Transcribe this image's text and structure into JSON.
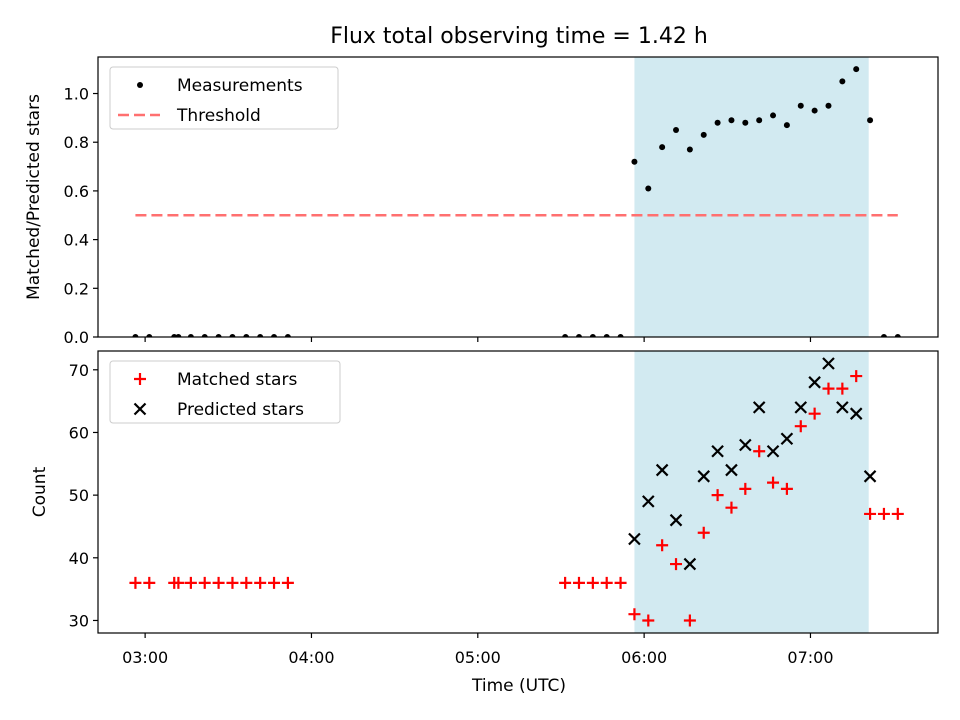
{
  "chart_data": [
    {
      "type": "scatter",
      "panel": "top",
      "title": "Flux total observing time = 1.42 h",
      "xlabel": "",
      "ylabel": "Matched/Predicted stars",
      "xlim": [
        2.7167,
        7.7667
      ],
      "ylim": [
        0.0,
        1.15
      ],
      "yticks": [
        0.0,
        0.2,
        0.4,
        0.6,
        0.8,
        1.0
      ],
      "ytick_labels": [
        "0.0",
        "0.2",
        "0.4",
        "0.6",
        "0.8",
        "1.0"
      ],
      "xticks": [
        3,
        4,
        5,
        6,
        7
      ],
      "shaded_span": [
        5.9417,
        7.35
      ],
      "legend": [
        "Measurements",
        "Threshold"
      ],
      "legend_position": "upper left",
      "series": [
        {
          "name": "Measurements",
          "marker": "dot",
          "color": "#000000",
          "points": [
            [
              2.9417,
              0.0
            ],
            [
              3.025,
              0.0
            ],
            [
              3.175,
              0.0
            ],
            [
              3.2,
              0.0
            ],
            [
              3.275,
              0.0
            ],
            [
              3.3583,
              0.0
            ],
            [
              3.4417,
              0.0
            ],
            [
              3.525,
              0.0
            ],
            [
              3.6083,
              0.0
            ],
            [
              3.6917,
              0.0
            ],
            [
              3.775,
              0.0
            ],
            [
              3.8583,
              0.0
            ],
            [
              5.525,
              0.0
            ],
            [
              5.6083,
              0.0
            ],
            [
              5.6917,
              0.0
            ],
            [
              5.775,
              0.0
            ],
            [
              5.8583,
              0.0
            ],
            [
              5.9417,
              0.72
            ],
            [
              6.025,
              0.61
            ],
            [
              6.1083,
              0.78
            ],
            [
              6.1917,
              0.85
            ],
            [
              6.275,
              0.77
            ],
            [
              6.3583,
              0.83
            ],
            [
              6.4417,
              0.88
            ],
            [
              6.525,
              0.89
            ],
            [
              6.6083,
              0.88
            ],
            [
              6.6917,
              0.89
            ],
            [
              6.775,
              0.91
            ],
            [
              6.8583,
              0.87
            ],
            [
              6.9417,
              0.95
            ],
            [
              7.025,
              0.93
            ],
            [
              7.1083,
              0.95
            ],
            [
              7.1917,
              1.05
            ],
            [
              7.275,
              1.1
            ],
            [
              7.3583,
              0.89
            ],
            [
              7.4417,
              0.0
            ],
            [
              7.525,
              0.0
            ]
          ]
        },
        {
          "name": "Threshold",
          "style": "dashed",
          "color": "#ff7070",
          "x": [
            2.9417,
            7.525
          ],
          "y": [
            0.5,
            0.5
          ]
        }
      ]
    },
    {
      "type": "scatter",
      "panel": "bottom",
      "title": "",
      "xlabel": "Time (UTC)",
      "ylabel": "Count",
      "xlim": [
        2.7167,
        7.7667
      ],
      "ylim": [
        28,
        73
      ],
      "yticks": [
        30,
        40,
        50,
        60,
        70
      ],
      "ytick_labels": [
        "30",
        "40",
        "50",
        "60",
        "70"
      ],
      "xticks": [
        3,
        4,
        5,
        6,
        7
      ],
      "xtick_labels": [
        "03:00",
        "04:00",
        "05:00",
        "06:00",
        "07:00"
      ],
      "shaded_span": [
        5.9417,
        7.35
      ],
      "legend": [
        "Matched stars",
        "Predicted stars"
      ],
      "legend_position": "upper left",
      "series": [
        {
          "name": "Matched stars",
          "marker": "plus",
          "color": "#ff0000",
          "points": [
            [
              2.9417,
              36
            ],
            [
              3.025,
              36
            ],
            [
              3.175,
              36
            ],
            [
              3.2,
              36
            ],
            [
              3.275,
              36
            ],
            [
              3.3583,
              36
            ],
            [
              3.4417,
              36
            ],
            [
              3.525,
              36
            ],
            [
              3.6083,
              36
            ],
            [
              3.6917,
              36
            ],
            [
              3.775,
              36
            ],
            [
              3.8583,
              36
            ],
            [
              5.525,
              36
            ],
            [
              5.6083,
              36
            ],
            [
              5.6917,
              36
            ],
            [
              5.775,
              36
            ],
            [
              5.8583,
              36
            ],
            [
              5.9417,
              31
            ],
            [
              6.025,
              30
            ],
            [
              6.1083,
              42
            ],
            [
              6.1917,
              39
            ],
            [
              6.275,
              30
            ],
            [
              6.3583,
              44
            ],
            [
              6.4417,
              50
            ],
            [
              6.525,
              48
            ],
            [
              6.6083,
              51
            ],
            [
              6.6917,
              57
            ],
            [
              6.775,
              52
            ],
            [
              6.8583,
              51
            ],
            [
              6.9417,
              61
            ],
            [
              7.025,
              63
            ],
            [
              7.1083,
              67
            ],
            [
              7.1917,
              67
            ],
            [
              7.275,
              69
            ],
            [
              7.3583,
              47
            ],
            [
              7.4417,
              47
            ],
            [
              7.525,
              47
            ]
          ]
        },
        {
          "name": "Predicted stars",
          "marker": "x",
          "color": "#000000",
          "points": [
            [
              5.9417,
              43
            ],
            [
              6.025,
              49
            ],
            [
              6.1083,
              54
            ],
            [
              6.1917,
              46
            ],
            [
              6.275,
              39
            ],
            [
              6.3583,
              53
            ],
            [
              6.4417,
              57
            ],
            [
              6.525,
              54
            ],
            [
              6.6083,
              58
            ],
            [
              6.6917,
              64
            ],
            [
              6.775,
              57
            ],
            [
              6.8583,
              59
            ],
            [
              6.9417,
              64
            ],
            [
              7.025,
              68
            ],
            [
              7.1083,
              71
            ],
            [
              7.1917,
              64
            ],
            [
              7.275,
              63
            ],
            [
              7.3583,
              53
            ]
          ]
        }
      ]
    }
  ],
  "colors": {
    "shade": "#add8e6",
    "threshold": "#ff7070",
    "matched": "#ff0000",
    "predicted": "#000000",
    "measurement": "#000000"
  }
}
